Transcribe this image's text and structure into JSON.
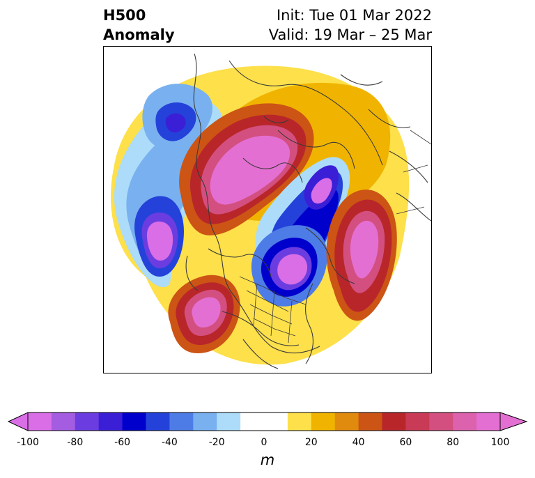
{
  "title": {
    "left_line1": "H500",
    "left_line2": "Anomaly",
    "right_line1": "Init: Tue 01 Mar 2022",
    "right_line2": "Valid: 19 Mar – 25 Mar"
  },
  "colorbar": {
    "unit": "m",
    "ticks": [
      "-100",
      "-80",
      "-60",
      "-40",
      "-20",
      "0",
      "20",
      "40",
      "60",
      "80",
      "100"
    ],
    "colors": [
      "#d96ee6",
      "#a45ce0",
      "#6b3de0",
      "#3a1fd6",
      "#0000cc",
      "#2442d9",
      "#4e7ce6",
      "#79b0ef",
      "#acdcf9",
      "#ffffff",
      "#ffffff",
      "#fde04a",
      "#f0b400",
      "#e08a0e",
      "#cc5414",
      "#b8262a",
      "#c83a55",
      "#d34f80",
      "#dc62ad",
      "#e46fd2"
    ],
    "extend_min_color": "#d96ee6",
    "extend_max_color": "#e46fd2"
  },
  "map": {
    "projection": "north polar stereographic",
    "features": [
      "coastlines",
      "country borders",
      "state borders"
    ]
  }
}
